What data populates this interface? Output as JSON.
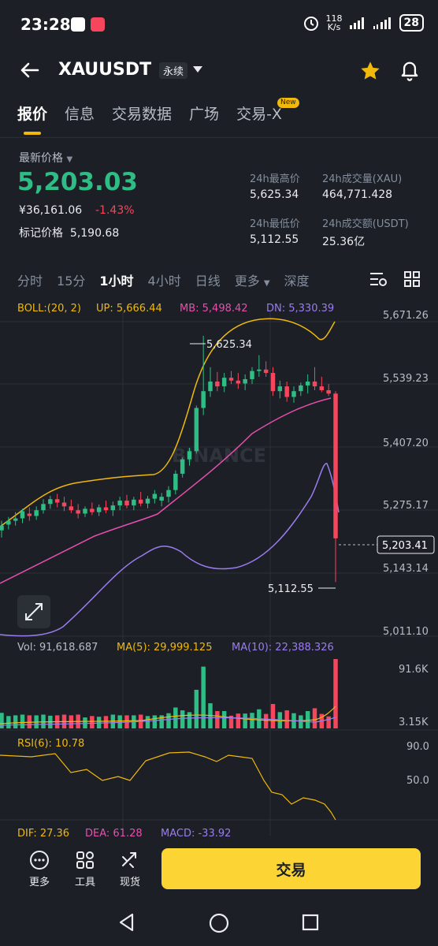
{
  "status_bar": {
    "time": "23:28",
    "net_speed_top": "118",
    "net_speed_unit": "K/s",
    "battery": "28"
  },
  "header": {
    "symbol": "XAUUSDT",
    "contract_type": "永续"
  },
  "tabs": [
    "报价",
    "信息",
    "交易数据",
    "广场",
    "交易-X"
  ],
  "tab_badge": "New",
  "price": {
    "latest_label": "最新价格",
    "last": "5,203.03",
    "cny": "¥36,161.06",
    "change_pct": "-1.43%",
    "mark_label": "标记价格",
    "mark": "5,190.68"
  },
  "stats": {
    "high_label": "24h最高价",
    "high": "5,625.34",
    "vol_label": "24h成交量(XAU)",
    "vol": "464,771.428",
    "low_label": "24h最低价",
    "low": "5,112.55",
    "turnover_label": "24h成交额(USDT)",
    "turnover": "25.36亿"
  },
  "intervals": [
    "分时",
    "15分",
    "1小时",
    "4小时",
    "日线",
    "更多",
    "深度"
  ],
  "chart": {
    "boll": "BOLL:(20, 2)",
    "up": "UP: 5,666.44",
    "mb": "MB: 5,498.42",
    "dn": "DN: 5,330.39",
    "price_axis": [
      "5,671.26",
      "5,539.23",
      "5,407.20",
      "5,275.17",
      "5,143.14",
      "5,011.10"
    ],
    "last_price_tag": "5,203.41",
    "high_marker": "5,625.34",
    "low_marker": "5,112.55",
    "watermark": "BINANCE",
    "vol": "Vol: 91,618.687",
    "vol_ma5": "MA(5): 29,999.125",
    "vol_ma10": "MA(10): 22,388.326",
    "vol_axis": [
      "91.6K",
      "3.15K"
    ],
    "rsi": "RSI(6): 10.78",
    "rsi_axis": [
      "90.0",
      "50.0"
    ],
    "dif": "DIF: 27.36",
    "dea": "DEA: 61.28",
    "macd": "MACD: -33.92",
    "colors": {
      "up": "#2ebd85",
      "down": "#f6465d",
      "boll_up": "#f0b90b",
      "boll_mb": "#e84fad",
      "boll_dn": "#9b7cf0"
    }
  },
  "chart_data": {
    "type": "candlestick",
    "interval": "1小时",
    "ylim": [
      5011.1,
      5671.26
    ],
    "candles": [
      {
        "o": 5220,
        "h": 5240,
        "l": 5205,
        "c": 5230
      },
      {
        "o": 5232,
        "h": 5248,
        "l": 5222,
        "c": 5240
      },
      {
        "o": 5240,
        "h": 5258,
        "l": 5230,
        "c": 5245
      },
      {
        "o": 5245,
        "h": 5265,
        "l": 5235,
        "c": 5260
      },
      {
        "o": 5255,
        "h": 5268,
        "l": 5240,
        "c": 5250
      },
      {
        "o": 5250,
        "h": 5270,
        "l": 5242,
        "c": 5262
      },
      {
        "o": 5262,
        "h": 5285,
        "l": 5255,
        "c": 5275
      },
      {
        "o": 5275,
        "h": 5292,
        "l": 5265,
        "c": 5285
      },
      {
        "o": 5285,
        "h": 5296,
        "l": 5268,
        "c": 5278
      },
      {
        "o": 5278,
        "h": 5290,
        "l": 5260,
        "c": 5270
      },
      {
        "o": 5270,
        "h": 5284,
        "l": 5256,
        "c": 5262
      },
      {
        "o": 5262,
        "h": 5275,
        "l": 5245,
        "c": 5255
      },
      {
        "o": 5255,
        "h": 5270,
        "l": 5248,
        "c": 5265
      },
      {
        "o": 5265,
        "h": 5278,
        "l": 5252,
        "c": 5258
      },
      {
        "o": 5258,
        "h": 5274,
        "l": 5250,
        "c": 5268
      },
      {
        "o": 5268,
        "h": 5282,
        "l": 5256,
        "c": 5262
      },
      {
        "o": 5262,
        "h": 5280,
        "l": 5250,
        "c": 5272
      },
      {
        "o": 5272,
        "h": 5290,
        "l": 5262,
        "c": 5282
      },
      {
        "o": 5282,
        "h": 5294,
        "l": 5266,
        "c": 5272
      },
      {
        "o": 5272,
        "h": 5290,
        "l": 5262,
        "c": 5284
      },
      {
        "o": 5284,
        "h": 5300,
        "l": 5270,
        "c": 5276
      },
      {
        "o": 5276,
        "h": 5292,
        "l": 5266,
        "c": 5286
      },
      {
        "o": 5286,
        "h": 5304,
        "l": 5276,
        "c": 5296
      },
      {
        "o": 5282,
        "h": 5298,
        "l": 5270,
        "c": 5290
      },
      {
        "o": 5290,
        "h": 5312,
        "l": 5278,
        "c": 5304
      },
      {
        "o": 5304,
        "h": 5345,
        "l": 5295,
        "c": 5338
      },
      {
        "o": 5338,
        "h": 5372,
        "l": 5330,
        "c": 5368
      },
      {
        "o": 5368,
        "h": 5392,
        "l": 5355,
        "c": 5385
      },
      {
        "o": 5385,
        "h": 5480,
        "l": 5380,
        "c": 5475
      },
      {
        "o": 5475,
        "h": 5625.34,
        "l": 5460,
        "c": 5510
      },
      {
        "o": 5510,
        "h": 5560,
        "l": 5498,
        "c": 5530
      },
      {
        "o": 5530,
        "h": 5550,
        "l": 5510,
        "c": 5520
      },
      {
        "o": 5520,
        "h": 5548,
        "l": 5508,
        "c": 5538
      },
      {
        "o": 5538,
        "h": 5552,
        "l": 5525,
        "c": 5532
      },
      {
        "o": 5532,
        "h": 5548,
        "l": 5515,
        "c": 5526
      },
      {
        "o": 5526,
        "h": 5545,
        "l": 5512,
        "c": 5535
      },
      {
        "o": 5535,
        "h": 5560,
        "l": 5525,
        "c": 5552
      },
      {
        "o": 5552,
        "h": 5585,
        "l": 5540,
        "c": 5555
      },
      {
        "o": 5555,
        "h": 5572,
        "l": 5540,
        "c": 5548
      },
      {
        "o": 5548,
        "h": 5560,
        "l": 5500,
        "c": 5510
      },
      {
        "o": 5510,
        "h": 5532,
        "l": 5495,
        "c": 5520
      },
      {
        "o": 5520,
        "h": 5530,
        "l": 5488,
        "c": 5498
      },
      {
        "o": 5498,
        "h": 5520,
        "l": 5486,
        "c": 5510
      },
      {
        "o": 5510,
        "h": 5528,
        "l": 5500,
        "c": 5522
      },
      {
        "o": 5522,
        "h": 5545,
        "l": 5505,
        "c": 5530
      },
      {
        "o": 5530,
        "h": 5560,
        "l": 5512,
        "c": 5520
      },
      {
        "o": 5520,
        "h": 5540,
        "l": 5508,
        "c": 5512
      },
      {
        "o": 5512,
        "h": 5525,
        "l": 5500,
        "c": 5505
      },
      {
        "o": 5505,
        "h": 5510,
        "l": 5112.55,
        "c": 5203.41
      }
    ]
  }
}
